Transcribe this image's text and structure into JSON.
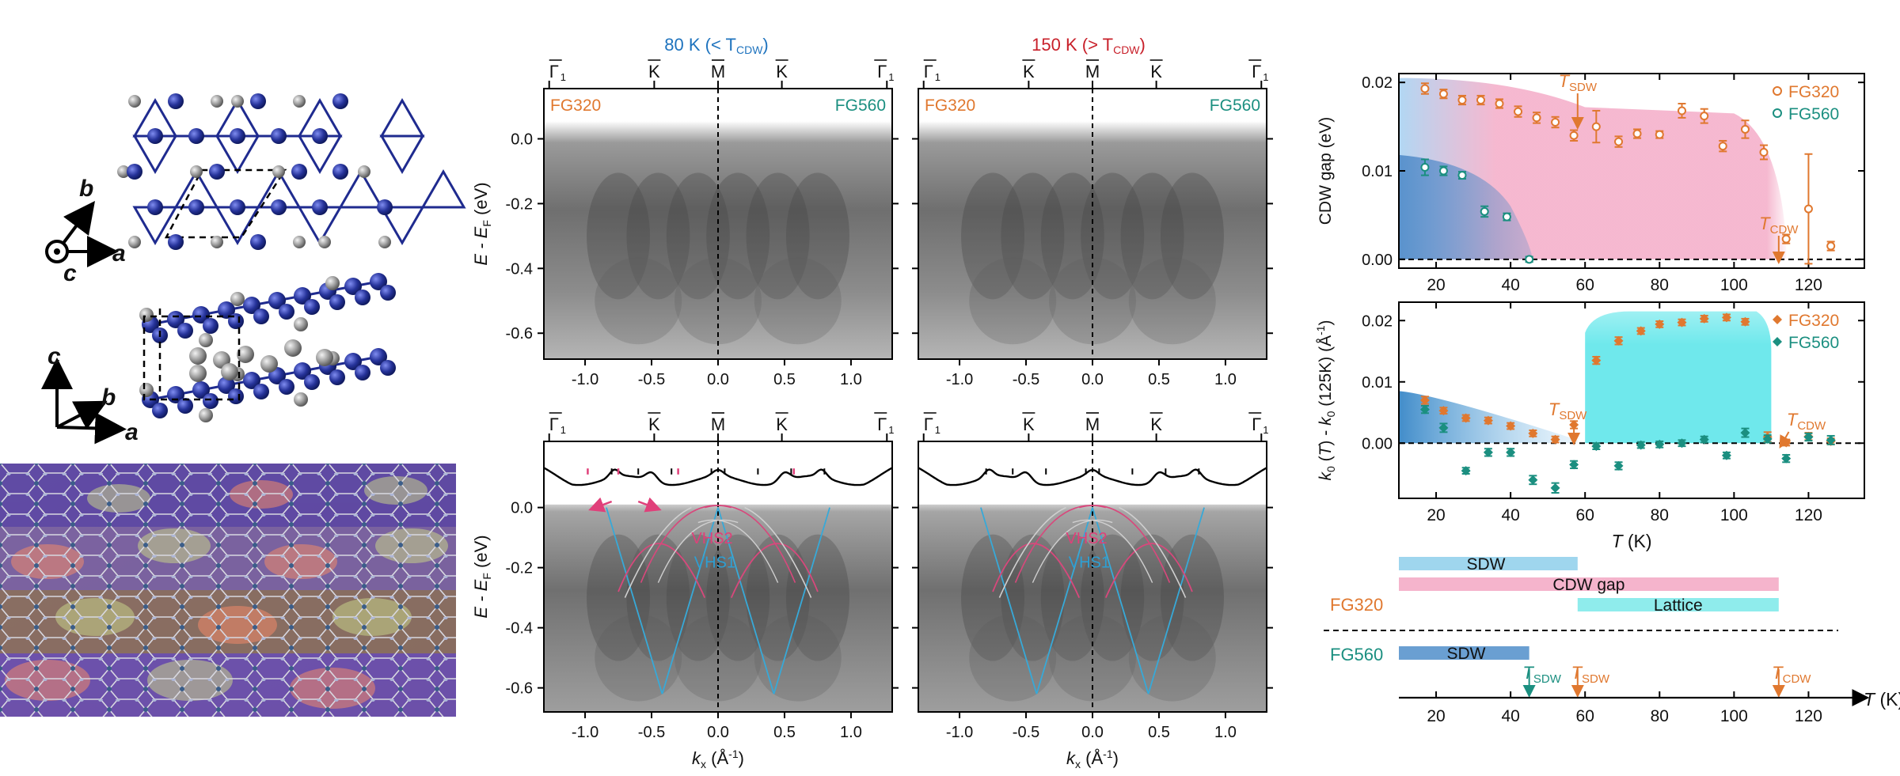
{
  "crystal": {
    "axes_top": {
      "a": "a",
      "b": "b",
      "c": "c"
    },
    "axes_side": {
      "a": "a",
      "b": "b",
      "c": "c"
    },
    "colors": {
      "kagome_atom": "#1f2b8f",
      "ge_atom": "#9a9a9a"
    }
  },
  "arpes": {
    "title_left": "80 K (< T",
    "title_left_sub": "CDW",
    "title_left_end": ")",
    "title_right": "150 K (> T",
    "title_right_sub": "CDW",
    "title_right_end": ")",
    "panel_labels": {
      "left": "FG320",
      "right": "FG560"
    },
    "top_ticks": [
      "Γ",
      "K",
      "M",
      "K",
      "Γ"
    ],
    "top_tick_sub": "1",
    "ylabel": "E - E",
    "ylabel_sub": "F",
    "ylabel_unit": " (eV)",
    "yticks": [
      "0.0",
      "-0.2",
      "-0.4",
      "-0.6"
    ],
    "xticks": [
      "-1.0",
      "-0.5",
      "0.0",
      "0.5",
      "1.0"
    ],
    "xlabel": "k",
    "xlabel_sub": "x",
    "xlabel_unit": " (Å",
    "xlabel_exp": "-1",
    "xlabel_end": ")",
    "band_labels": {
      "vhs1": "VHS1",
      "vhs2": "VHS2"
    }
  },
  "chart_data": [
    {
      "type": "scatter",
      "title": "",
      "xlabel": "",
      "ylabel": "CDW gap (eV)",
      "xlim": [
        10,
        135
      ],
      "ylim": [
        -0.001,
        0.021
      ],
      "xticks": [
        20,
        40,
        60,
        80,
        100,
        120
      ],
      "yticks": [
        "0.00",
        "0.01",
        "0.02"
      ],
      "legend_position": "top-right",
      "annotations": [
        {
          "text": "T",
          "sub": "SDW",
          "x": 58
        },
        {
          "text": "T",
          "sub": "CDW",
          "x": 112
        }
      ],
      "series": [
        {
          "name": "FG320",
          "color": "#e0782f",
          "x": [
            17,
            22,
            27,
            32,
            37,
            42,
            47,
            52,
            57,
            63,
            69,
            74,
            80,
            86,
            92,
            97,
            103,
            108,
            114,
            120,
            126
          ],
          "y": [
            0.0193,
            0.0187,
            0.018,
            0.018,
            0.0176,
            0.0167,
            0.016,
            0.0155,
            0.014,
            0.015,
            0.0133,
            0.0142,
            0.0141,
            0.0168,
            0.0162,
            0.0128,
            0.0147,
            0.0121,
            0.0023,
            0.0057,
            0.0015
          ],
          "err": [
            0.0006,
            0.0005,
            0.0005,
            0.0005,
            0.0005,
            0.0006,
            0.0006,
            0.0006,
            0.0006,
            0.0018,
            0.0006,
            0.0005,
            0.0004,
            0.0008,
            0.0008,
            0.0006,
            0.001,
            0.0008,
            0.0005,
            0.0062,
            0.0005
          ]
        },
        {
          "name": "FG560",
          "color": "#1b8f80",
          "x": [
            17,
            22,
            27,
            33,
            39,
            45
          ],
          "y": [
            0.0104,
            0.01,
            0.0095,
            0.0054,
            0.0048,
            0.0
          ],
          "err": [
            0.0009,
            0.0005,
            0.0004,
            0.0006,
            0.0004,
            0.0003
          ]
        }
      ]
    },
    {
      "type": "scatter",
      "title": "",
      "xlabel": "T (K)",
      "ylabel": "k0 (T) - k0 (125K) (Å-1)",
      "xlim": [
        10,
        135
      ],
      "ylim": [
        -0.009,
        0.023
      ],
      "xticks": [
        20,
        40,
        60,
        80,
        100,
        120
      ],
      "yticks": [
        "0.00",
        "0.01",
        "0.02"
      ],
      "legend_position": "top-right",
      "annotations": [
        {
          "text": "T",
          "sub": "SDW",
          "x": 57
        },
        {
          "text": "T",
          "sub": "CDW",
          "x": 113
        }
      ],
      "series": [
        {
          "name": "FG320",
          "color": "#e0782f",
          "x": [
            17,
            22,
            28,
            34,
            40,
            46,
            52,
            57,
            63,
            69,
            75,
            80,
            86,
            92,
            98,
            103,
            109,
            114,
            120,
            126
          ],
          "y": [
            0.007,
            0.0053,
            0.0041,
            0.0037,
            0.0028,
            0.0016,
            0.0006,
            0.003,
            0.0135,
            0.0167,
            0.0183,
            0.0194,
            0.0197,
            0.0203,
            0.0205,
            0.0198,
            0.001,
            0.0001,
            0.0011,
            0.0003
          ],
          "err": [
            0.0006,
            0.0005,
            0.0005,
            0.0005,
            0.0005,
            0.0005,
            0.0005,
            0.0006,
            0.0006,
            0.0006,
            0.0005,
            0.0005,
            0.0005,
            0.0005,
            0.0005,
            0.0005,
            0.0008,
            0.0005,
            0.0006,
            0.0005
          ]
        },
        {
          "name": "FG560",
          "color": "#1b8f80",
          "x": [
            17,
            22,
            28,
            34,
            40,
            46,
            52,
            57,
            63,
            69,
            75,
            80,
            86,
            92,
            98,
            103,
            109,
            114,
            120,
            126
          ],
          "y": [
            0.0055,
            0.0025,
            -0.0045,
            -0.0015,
            -0.0015,
            -0.006,
            -0.0073,
            -0.0035,
            -0.0005,
            -0.0037,
            -0.0003,
            -0.0002,
            0.0,
            0.0006,
            -0.002,
            0.0017,
            0.0007,
            -0.0025,
            0.001,
            0.0005
          ],
          "err": [
            0.0006,
            0.0007,
            0.0005,
            0.0006,
            0.0006,
            0.0007,
            0.0008,
            0.0006,
            0.0005,
            0.0006,
            0.0005,
            0.0005,
            0.0005,
            0.0005,
            0.0005,
            0.0007,
            0.0006,
            0.0006,
            0.0006,
            0.0007
          ]
        }
      ]
    },
    {
      "type": "bar",
      "title": "",
      "xlabel": "T (K)",
      "xlim": [
        10,
        135
      ],
      "xticks": [
        20,
        40,
        60,
        80,
        100,
        120
      ],
      "groups": [
        {
          "name": "FG320",
          "bars": [
            {
              "label": "SDW",
              "start": 10,
              "end": 58,
              "color": "#9fd6ee"
            },
            {
              "label": "CDW gap",
              "start": 10,
              "end": 112,
              "color": "#f5b4cc"
            },
            {
              "label": "Lattice",
              "start": 58,
              "end": 112,
              "color": "#8fecec"
            }
          ]
        },
        {
          "name": "FG560",
          "bars": [
            {
              "label": "SDW",
              "start": 10,
              "end": 45,
              "color": "#6a9fd2"
            }
          ]
        }
      ],
      "markers": [
        {
          "text": "T",
          "sub": "SDW",
          "x": 45,
          "color": "#1b8f80"
        },
        {
          "text": "T",
          "sub": "SDW",
          "x": 58,
          "color": "#e0782f"
        },
        {
          "text": "T",
          "sub": "CDW",
          "x": 112,
          "color": "#e0782f"
        }
      ]
    }
  ]
}
